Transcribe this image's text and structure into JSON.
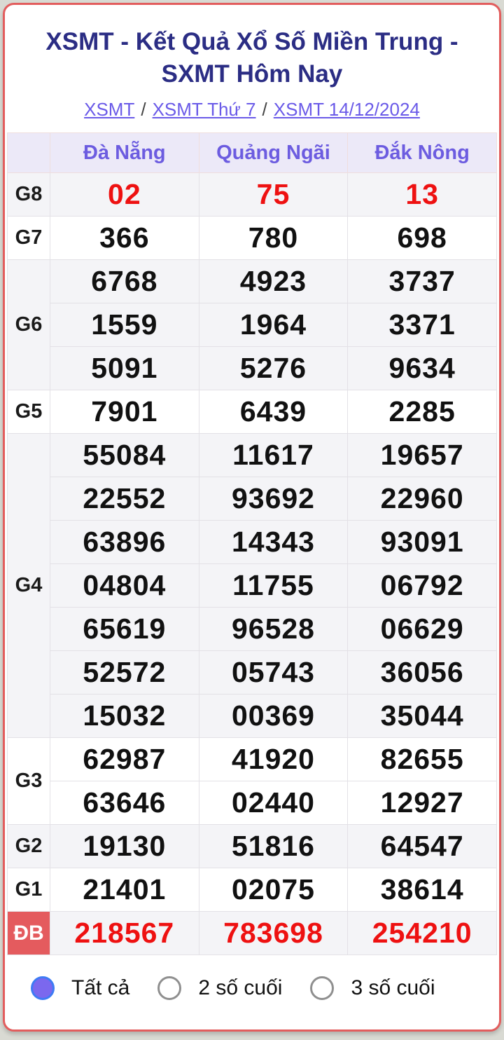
{
  "header": {
    "title": "XSMT - Kết Quả Xổ Số Miền Trung - SXMT Hôm Nay"
  },
  "breadcrumb": {
    "separator": "/",
    "links": [
      "XSMT",
      "XSMT Thứ 7",
      "XSMT 14/12/2024"
    ]
  },
  "table": {
    "provinces": [
      "Đà Nẵng",
      "Quảng Ngãi",
      "Đắk Nông"
    ],
    "groups": [
      {
        "label": "G8",
        "shade": true,
        "highlight": true,
        "special": false,
        "rows": [
          [
            "02",
            "75",
            "13"
          ]
        ]
      },
      {
        "label": "G7",
        "shade": false,
        "highlight": false,
        "special": false,
        "rows": [
          [
            "366",
            "780",
            "698"
          ]
        ]
      },
      {
        "label": "G6",
        "shade": true,
        "highlight": false,
        "special": false,
        "rows": [
          [
            "6768",
            "4923",
            "3737"
          ],
          [
            "1559",
            "1964",
            "3371"
          ],
          [
            "5091",
            "5276",
            "9634"
          ]
        ]
      },
      {
        "label": "G5",
        "shade": false,
        "highlight": false,
        "special": false,
        "rows": [
          [
            "7901",
            "6439",
            "2285"
          ]
        ]
      },
      {
        "label": "G4",
        "shade": true,
        "highlight": false,
        "special": false,
        "rows": [
          [
            "55084",
            "11617",
            "19657"
          ],
          [
            "22552",
            "93692",
            "22960"
          ],
          [
            "63896",
            "14343",
            "93091"
          ],
          [
            "04804",
            "11755",
            "06792"
          ],
          [
            "65619",
            "96528",
            "06629"
          ],
          [
            "52572",
            "05743",
            "36056"
          ],
          [
            "15032",
            "00369",
            "35044"
          ]
        ]
      },
      {
        "label": "G3",
        "shade": false,
        "highlight": false,
        "special": false,
        "rows": [
          [
            "62987",
            "41920",
            "82655"
          ],
          [
            "63646",
            "02440",
            "12927"
          ]
        ]
      },
      {
        "label": "G2",
        "shade": true,
        "highlight": false,
        "special": false,
        "rows": [
          [
            "19130",
            "51816",
            "64547"
          ]
        ]
      },
      {
        "label": "G1",
        "shade": false,
        "highlight": false,
        "special": false,
        "rows": [
          [
            "21401",
            "02075",
            "38614"
          ]
        ]
      },
      {
        "label": "ĐB",
        "shade": true,
        "highlight": true,
        "special": true,
        "rows": [
          [
            "218567",
            "783698",
            "254210"
          ]
        ]
      }
    ]
  },
  "filters": {
    "options": [
      {
        "label": "Tất cả",
        "selected": true
      },
      {
        "label": "2 số cuối",
        "selected": false
      },
      {
        "label": "3 số cuối",
        "selected": false
      }
    ]
  },
  "colors": {
    "title_navy": "#2b2d84",
    "link_purple": "#6a5ae8",
    "header_bg": "#ece9f8",
    "header_text": "#6c5ce0",
    "value_red": "#ee1111",
    "special_label_bg": "#e45b5e",
    "card_border_red": "#e25d5d",
    "shade_row_bg": "#f4f4f7"
  }
}
